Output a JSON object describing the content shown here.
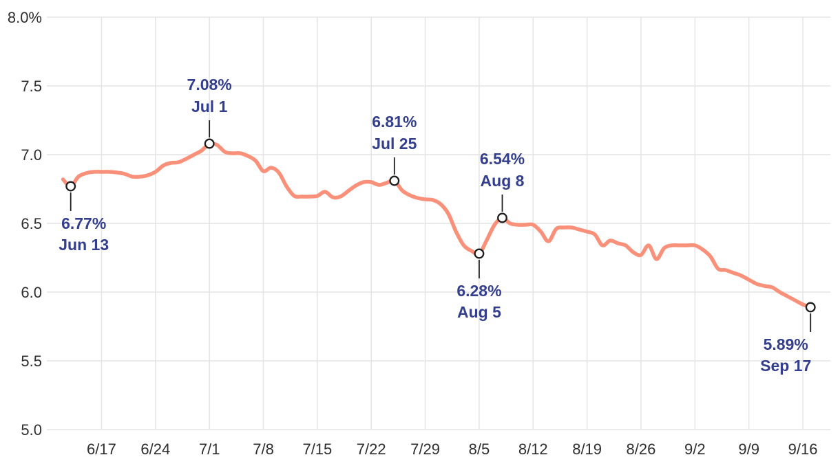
{
  "chart_data": {
    "type": "line",
    "title": "",
    "grid": true,
    "legend": "none",
    "line_color": "#F9917A",
    "grid_color": "#E4E4E4",
    "axis_label_color": "#2E2E2E",
    "annotation_color": "#333E8C",
    "marker_stroke_color": "#1E1E1E",
    "marker_fill_color": "#FFFFFF",
    "ylim": [
      5.0,
      8.0
    ],
    "y_ticks": [
      {
        "value": 8.0,
        "label": "8.0%"
      },
      {
        "value": 7.5,
        "label": "7.5"
      },
      {
        "value": 7.0,
        "label": "7.0"
      },
      {
        "value": 6.5,
        "label": "6.5"
      },
      {
        "value": 6.0,
        "label": "6.0"
      },
      {
        "value": 5.5,
        "label": "5.5"
      },
      {
        "value": 5.0,
        "label": "5.0"
      }
    ],
    "x_ticks": [
      {
        "index": 5,
        "label": "6/17"
      },
      {
        "index": 12,
        "label": "6/24"
      },
      {
        "index": 19,
        "label": "7/1"
      },
      {
        "index": 26,
        "label": "7/8"
      },
      {
        "index": 33,
        "label": "7/15"
      },
      {
        "index": 40,
        "label": "7/22"
      },
      {
        "index": 47,
        "label": "7/29"
      },
      {
        "index": 54,
        "label": "8/5"
      },
      {
        "index": 61,
        "label": "8/12"
      },
      {
        "index": 68,
        "label": "8/19"
      },
      {
        "index": 75,
        "label": "8/26"
      },
      {
        "index": 82,
        "label": "9/2"
      },
      {
        "index": 89,
        "label": "9/9"
      },
      {
        "index": 96,
        "label": "9/16"
      }
    ],
    "x": [
      "6/12",
      "6/13",
      "6/14",
      "6/15",
      "6/16",
      "6/17",
      "6/18",
      "6/19",
      "6/20",
      "6/21",
      "6/22",
      "6/23",
      "6/24",
      "6/25",
      "6/26",
      "6/27",
      "6/28",
      "6/29",
      "6/30",
      "7/1",
      "7/2",
      "7/3",
      "7/4",
      "7/5",
      "7/6",
      "7/7",
      "7/8",
      "7/9",
      "7/10",
      "7/11",
      "7/12",
      "7/13",
      "7/14",
      "7/15",
      "7/16",
      "7/17",
      "7/18",
      "7/19",
      "7/20",
      "7/21",
      "7/22",
      "7/23",
      "7/24",
      "7/25",
      "7/26",
      "7/27",
      "7/28",
      "7/29",
      "7/30",
      "7/31",
      "8/1",
      "8/2",
      "8/3",
      "8/4",
      "8/5",
      "8/6",
      "8/7",
      "8/8",
      "8/9",
      "8/10",
      "8/11",
      "8/12",
      "8/13",
      "8/14",
      "8/15",
      "8/16",
      "8/17",
      "8/18",
      "8/19",
      "8/20",
      "8/21",
      "8/22",
      "8/23",
      "8/24",
      "8/25",
      "8/26",
      "8/27",
      "8/28",
      "8/29",
      "8/30",
      "8/31",
      "9/1",
      "9/2",
      "9/3",
      "9/4",
      "9/5",
      "9/6",
      "9/7",
      "9/8",
      "9/9",
      "9/10",
      "9/11",
      "9/12",
      "9/13",
      "9/14",
      "9/15",
      "9/16",
      "9/17"
    ],
    "values": [
      6.82,
      6.77,
      6.84,
      6.865,
      6.875,
      6.875,
      6.875,
      6.87,
      6.86,
      6.84,
      6.84,
      6.85,
      6.875,
      6.92,
      6.94,
      6.945,
      6.97,
      7.0,
      7.03,
      7.08,
      7.07,
      7.02,
      7.01,
      7.01,
      6.99,
      6.955,
      6.88,
      6.905,
      6.87,
      6.77,
      6.7,
      6.695,
      6.695,
      6.7,
      6.73,
      6.69,
      6.695,
      6.735,
      6.775,
      6.8,
      6.8,
      6.78,
      6.795,
      6.81,
      6.74,
      6.705,
      6.685,
      6.675,
      6.67,
      6.64,
      6.57,
      6.44,
      6.34,
      6.3,
      6.28,
      6.38,
      6.49,
      6.54,
      6.5,
      6.49,
      6.49,
      6.49,
      6.44,
      6.37,
      6.46,
      6.47,
      6.47,
      6.455,
      6.44,
      6.42,
      6.34,
      6.375,
      6.355,
      6.34,
      6.29,
      6.27,
      6.34,
      6.24,
      6.32,
      6.34,
      6.34,
      6.34,
      6.34,
      6.31,
      6.26,
      6.17,
      6.16,
      6.14,
      6.12,
      6.09,
      6.06,
      6.045,
      6.035,
      6.0,
      5.97,
      5.94,
      5.91,
      5.89
    ],
    "annotations": [
      {
        "index": 1,
        "value_label": "6.77%",
        "date_label": "Jun 13",
        "direction": "below",
        "dx": 19
      },
      {
        "index": 19,
        "value_label": "7.08%",
        "date_label": "Jul 1",
        "direction": "above",
        "dx": 0
      },
      {
        "index": 43,
        "value_label": "6.81%",
        "date_label": "Jul 25",
        "direction": "above",
        "dx": 0
      },
      {
        "index": 57,
        "value_label": "6.54%",
        "date_label": "Aug 8",
        "direction": "above",
        "dx": 0
      },
      {
        "index": 54,
        "value_label": "6.28%",
        "date_label": "Aug 5",
        "direction": "below",
        "dx": 0
      },
      {
        "index": 97,
        "value_label": "5.89%",
        "date_label": "Sep 17",
        "direction": "below",
        "dx": -36
      }
    ]
  }
}
